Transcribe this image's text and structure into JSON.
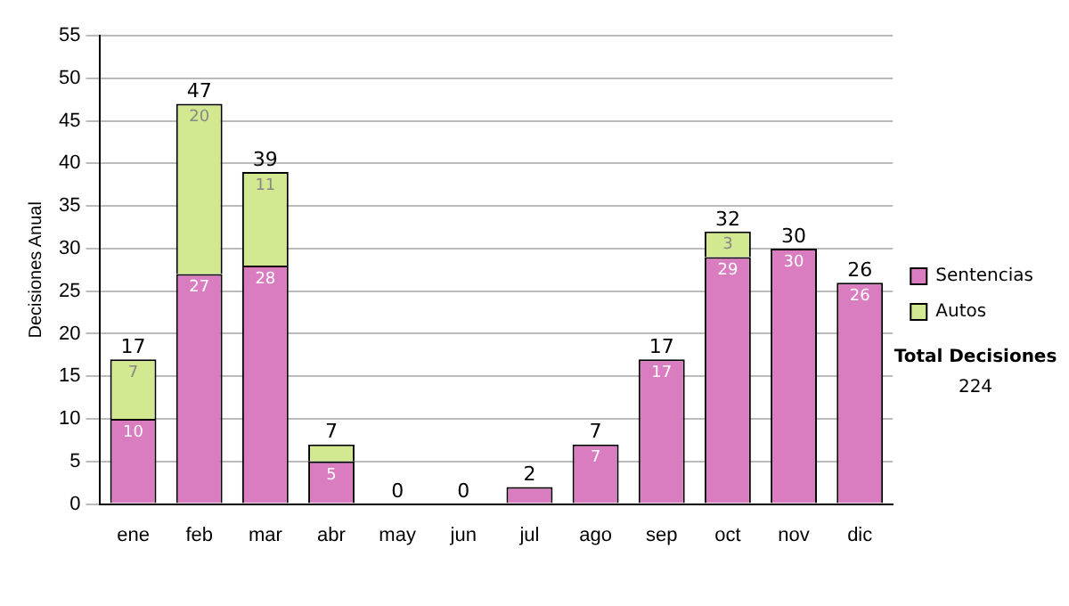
{
  "chart_data": {
    "type": "bar",
    "stacked": true,
    "ylabel": "Decisiones Anual",
    "categories": [
      "ene",
      "feb",
      "mar",
      "abr",
      "may",
      "jun",
      "jul",
      "ago",
      "sep",
      "oct",
      "nov",
      "dic"
    ],
    "series": [
      {
        "name": "Sentencias",
        "color": "#d97cc0",
        "values": [
          10,
          27,
          28,
          5,
          0,
          0,
          2,
          7,
          17,
          29,
          30,
          26
        ],
        "value_labels": [
          "10",
          "27",
          "28",
          "5",
          null,
          null,
          null,
          "7",
          "17",
          "29",
          "30",
          "26"
        ]
      },
      {
        "name": "Autos",
        "color": "#d2e891",
        "values": [
          7,
          20,
          11,
          2,
          0,
          0,
          0,
          0,
          0,
          3,
          0,
          0
        ],
        "value_labels": [
          "7",
          "20",
          "11",
          null,
          null,
          null,
          null,
          null,
          null,
          "3",
          null,
          null
        ]
      }
    ],
    "totals": [
      "17",
      "47",
      "39",
      "7",
      "0",
      "0",
      "2",
      "7",
      "17",
      "32",
      "30",
      "26"
    ],
    "ylim": [
      0,
      55
    ],
    "yticks": [
      0,
      5,
      10,
      15,
      20,
      25,
      30,
      35,
      40,
      45,
      50,
      55
    ],
    "grid": "y",
    "legend": "right",
    "annotations": [
      "Total Decisiones",
      "224"
    ]
  }
}
